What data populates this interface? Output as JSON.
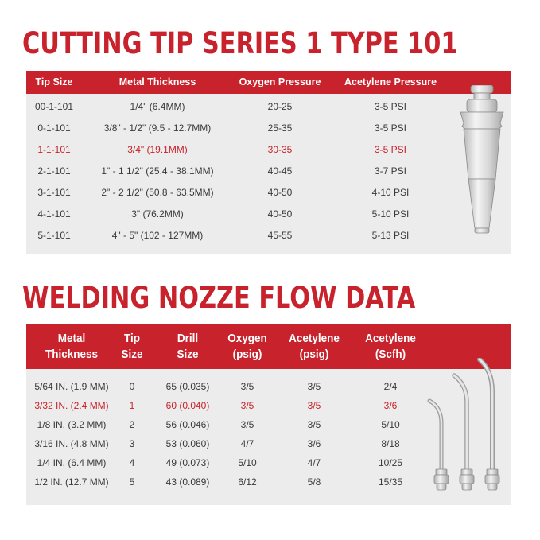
{
  "cutting": {
    "title": "CUTTING TIP SERIES 1 TYPE 101",
    "headers": [
      "Tip Size",
      "Metal Thickness",
      "Oxygen Pressure",
      "Acetylene Pressure"
    ],
    "rows": [
      [
        "00-1-101",
        "1/4\" (6.4MM)",
        "20-25",
        "3-5 PSI"
      ],
      [
        "0-1-101",
        "3/8\" - 1/2\" (9.5 - 12.7MM)",
        "25-35",
        "3-5 PSI"
      ],
      [
        "1-1-101",
        "3/4\" (19.1MM)",
        "30-35",
        "3-5 PSI"
      ],
      [
        "2-1-101",
        "1\" - 1 1/2\" (25.4 - 38.1MM)",
        "40-45",
        "3-7 PSI"
      ],
      [
        "3-1-101",
        "2\" - 2 1/2\" (50.8 - 63.5MM)",
        "40-50",
        "4-10 PSI"
      ],
      [
        "4-1-101",
        "3\" (76.2MM)",
        "40-50",
        "5-10 PSI"
      ],
      [
        "5-1-101",
        "4\" - 5\" (102 - 127MM)",
        "45-55",
        "5-13 PSI"
      ]
    ],
    "highlight_row": 2
  },
  "welding": {
    "title": "WELDING NOZZE FLOW DATA",
    "headers": [
      [
        "Metal",
        "Thickness"
      ],
      [
        "Tip",
        "Size"
      ],
      [
        "Drill",
        "Size"
      ],
      [
        "Oxygen",
        "(psig)"
      ],
      [
        "Acetylene",
        "(psig)"
      ],
      [
        "Acetylene",
        "(Scfh)"
      ]
    ],
    "rows": [
      [
        "5/64 IN. (1.9 MM)",
        "0",
        "65 (0.035)",
        "3/5",
        "3/5",
        "2/4"
      ],
      [
        "3/32 IN. (2.4 MM)",
        "1",
        "60 (0.040)",
        "3/5",
        "3/5",
        "3/6"
      ],
      [
        "1/8 IN. (3.2 MM)",
        "2",
        "56 (0.046)",
        "3/5",
        "3/5",
        "5/10"
      ],
      [
        "3/16 IN. (4.8 MM)",
        "3",
        "53 (0.060)",
        "4/7",
        "3/6",
        "8/18"
      ],
      [
        "1/4 IN. (6.4 MM)",
        "4",
        "49 (0.073)",
        "5/10",
        "4/7",
        "10/25"
      ],
      [
        "1/2 IN. (12.7 MM)",
        "5",
        "43 (0.089)",
        "6/12",
        "5/8",
        "15/35"
      ]
    ],
    "highlight_row": 1
  },
  "colors": {
    "accent": "#c8222c",
    "panel_bg": "#ececec",
    "text": "#3a3a3a"
  },
  "icons": [
    "cutting-tip-icon",
    "welding-nozzle-icon"
  ]
}
